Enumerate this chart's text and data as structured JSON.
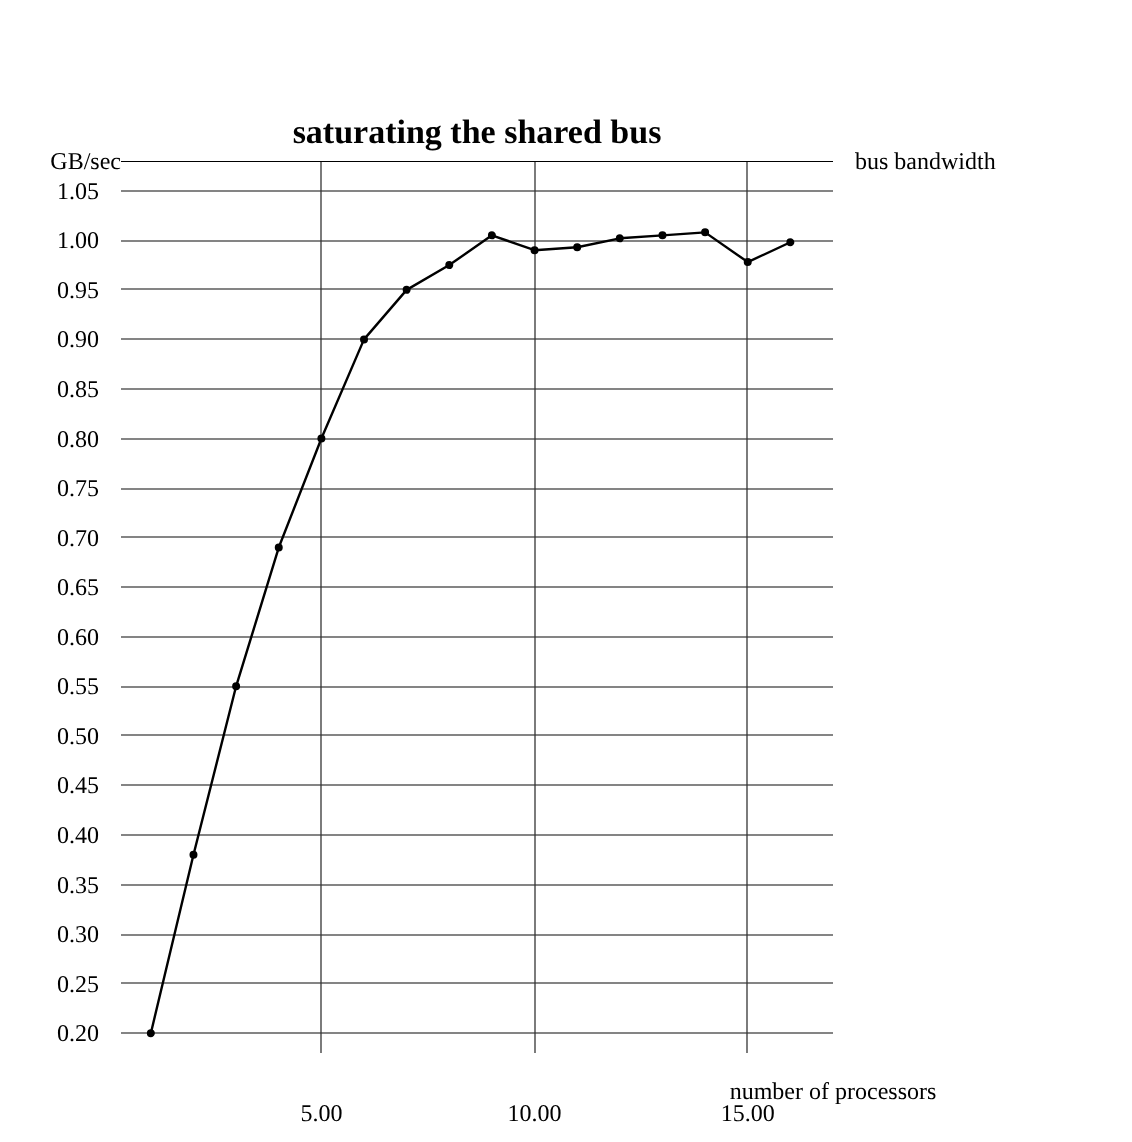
{
  "chart_data": {
    "type": "line",
    "title": "saturating the shared bus",
    "xlabel": "number of processors",
    "ylabel": "GB/sec",
    "x": [
      1,
      2,
      3,
      4,
      5,
      6,
      7,
      8,
      9,
      10,
      11,
      12,
      13,
      14,
      15,
      16
    ],
    "series": [
      {
        "color": "#000000",
        "values": [
          0.2,
          0.38,
          0.55,
          0.69,
          0.8,
          0.9,
          0.95,
          0.975,
          1.005,
          0.99,
          0.993,
          1.002,
          1.005,
          1.008,
          0.978,
          0.998
        ]
      }
    ],
    "xlim": [
      0.3,
      17
    ],
    "ylim": [
      0.18,
      1.08
    ],
    "xticks": [
      {
        "value": 5,
        "label": "5.00"
      },
      {
        "value": 10,
        "label": "10.00"
      },
      {
        "value": 15,
        "label": "15.00"
      }
    ],
    "yticks": [
      {
        "value": 0.2,
        "label": "0.20"
      },
      {
        "value": 0.25,
        "label": "0.25"
      },
      {
        "value": 0.3,
        "label": "0.30"
      },
      {
        "value": 0.35,
        "label": "0.35"
      },
      {
        "value": 0.4,
        "label": "0.40"
      },
      {
        "value": 0.45,
        "label": "0.45"
      },
      {
        "value": 0.5,
        "label": "0.50"
      },
      {
        "value": 0.55,
        "label": "0.55"
      },
      {
        "value": 0.6,
        "label": "0.60"
      },
      {
        "value": 0.65,
        "label": "0.65"
      },
      {
        "value": 0.7,
        "label": "0.70"
      },
      {
        "value": 0.75,
        "label": "0.75"
      },
      {
        "value": 0.8,
        "label": "0.80"
      },
      {
        "value": 0.85,
        "label": "0.85"
      },
      {
        "value": 0.9,
        "label": "0.90"
      },
      {
        "value": 0.95,
        "label": "0.95"
      },
      {
        "value": 1.0,
        "label": "1.00"
      },
      {
        "value": 1.05,
        "label": "1.05"
      }
    ],
    "ref_lines": [
      {
        "axis": "y",
        "value": 1.08,
        "label": "bus bandwidth"
      }
    ],
    "grid": true,
    "marker": "circle",
    "line_style": "solid"
  }
}
